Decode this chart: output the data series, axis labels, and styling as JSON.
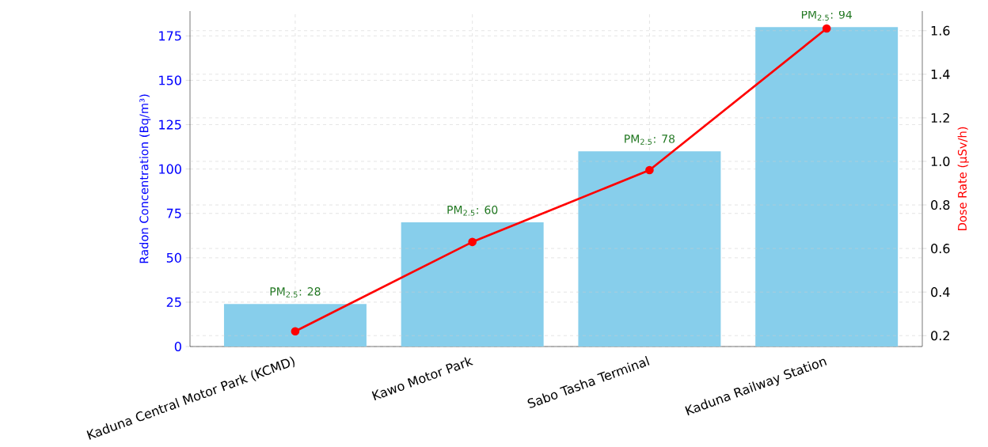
{
  "chart_data": {
    "type": "bar",
    "ylabel": "Radon Concentration (Bq/m³)",
    "y2label": "Dose Rate (μSv/h)",
    "categories": [
      "Kaduna Central Motor Park (KCMD)",
      "Kawo Motor Park",
      "Sabo Tasha Terminal",
      "Kaduna Railway Station"
    ],
    "series": [
      {
        "color": "#87ceeb",
        "values": [
          24,
          70,
          110,
          180
        ]
      },
      {
        "type": "line",
        "axis": "y2",
        "color": "#ff0000",
        "values": [
          0.22,
          0.63,
          0.96,
          1.61
        ]
      }
    ],
    "ylim": [
      0,
      189
    ],
    "yticks": [
      0,
      25,
      50,
      75,
      100,
      125,
      150,
      175
    ],
    "y2lim": [
      0.15,
      1.69
    ],
    "y2ticks": [
      0.2,
      0.4,
      0.6,
      0.8,
      {
        "value": 1,
        "label": "1.0"
      },
      1.2,
      1.4,
      1.6
    ],
    "grid": true,
    "marker": "circle",
    "line_style": "solid",
    "annotations": [
      {
        "text": "PM$_{2.5}$: 28",
        "x": "Kaduna Central Motor Park (KCMD)",
        "y": 24
      },
      {
        "text": "PM$_{2.5}$: 60",
        "x": "Kawo Motor Park",
        "y": 70
      },
      {
        "text": "PM$_{2.5}$: 78",
        "x": "Sabo Tasha Terminal",
        "y": 110
      },
      {
        "text": "PM$_{2.5}$: 94",
        "x": "Kaduna Railway Station",
        "y": 180
      }
    ]
  }
}
